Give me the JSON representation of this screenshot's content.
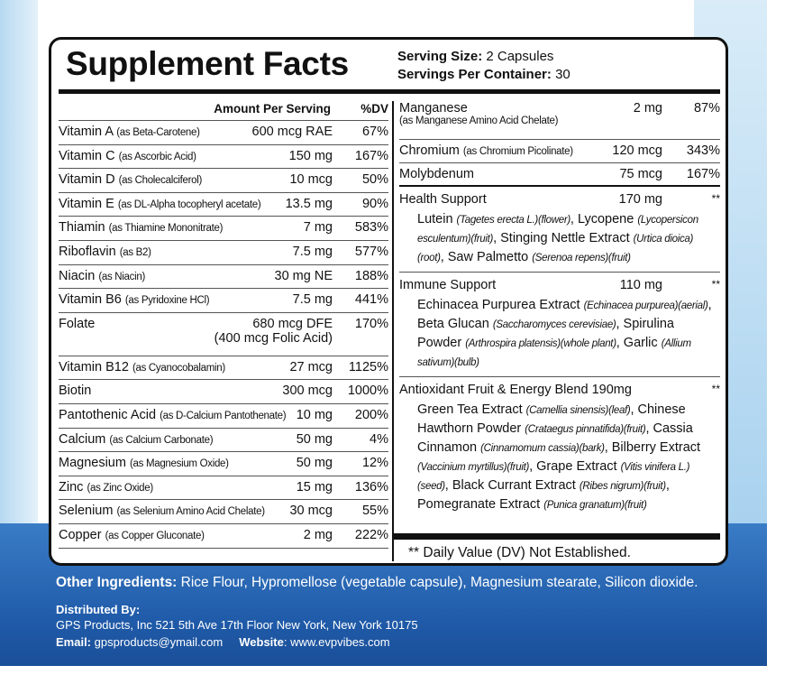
{
  "header": {
    "title": "Supplement Facts",
    "serving_size": {
      "label": "Serving Size:",
      "value": "2 Capsules"
    },
    "servings": {
      "label": "Servings Per Container:",
      "value": "30"
    }
  },
  "left_table": {
    "columns": [
      "Amount Per Serving",
      "%DV"
    ],
    "rows": [
      {
        "name": "Vitamin A",
        "form": "(as Beta-Carotene)",
        "amount": "600 mcg RAE",
        "dv": "67%"
      },
      {
        "name": "Vitamin C",
        "form": "(as Ascorbic Acid)",
        "amount": "150 mg",
        "dv": "167%"
      },
      {
        "name": "Vitamin D",
        "form": "(as Cholecalciferol)",
        "amount": "10 mcg",
        "dv": "50%"
      },
      {
        "name": "Vitamin E",
        "form": "(as DL-Alpha tocopheryl acetate)",
        "amount": "13.5 mg",
        "dv": "90%"
      },
      {
        "name": "Thiamin",
        "form": "(as Thiamine Mononitrate)",
        "amount": "7 mg",
        "dv": "583%"
      },
      {
        "name": "Riboflavin",
        "form": "(as B2)",
        "amount": "7.5 mg",
        "dv": "577%"
      },
      {
        "name": "Niacin",
        "form": "(as Niacin)",
        "amount": "30 mg NE",
        "dv": "188%"
      },
      {
        "name": "Vitamin B6",
        "form": "(as Pyridoxine HCl)",
        "amount": "7.5 mg",
        "dv": "441%"
      },
      {
        "name": "Folate",
        "amount": "680 mcg DFE",
        "amount_note": "(400 mcg Folic Acid)",
        "dv": "170%"
      },
      {
        "name": "Vitamin B12",
        "form": "(as Cyanocobalamin)",
        "amount": "27 mcg",
        "dv": "1125%"
      },
      {
        "name": "Biotin",
        "amount": "300 mcg",
        "dv": "1000%"
      },
      {
        "name": "Pantothenic Acid",
        "form": "(as D-Calcium Pantothenate)",
        "amount": "10 mg",
        "dv": "200%"
      },
      {
        "name": "Calcium",
        "form": "(as Calcium Carbonate)",
        "amount": "50 mg",
        "dv": "4%"
      },
      {
        "name": "Magnesium",
        "form": "(as Magnesium Oxide)",
        "amount": "50 mg",
        "dv": "12%"
      },
      {
        "name": "Zinc",
        "form": "(as Zinc Oxide)",
        "amount": "15 mg",
        "dv": "136%"
      },
      {
        "name": "Selenium",
        "form": "(as Selenium Amino Acid Chelate)",
        "amount": "30 mcg",
        "dv": "55%"
      },
      {
        "name": "Copper",
        "form": "(as Copper Gluconate)",
        "amount": "2 mg",
        "dv": "222%"
      }
    ]
  },
  "right_table": {
    "rows": [
      {
        "name": "Manganese",
        "form": "(as Manganese Amino Acid Chelate)",
        "amount": "2 mg",
        "dv": "87%"
      },
      {
        "name": "Chromium",
        "form": "(as Chromium Picolinate)",
        "amount": "120 mcg",
        "dv": "343%"
      },
      {
        "name": "Molybdenum",
        "amount": "75 mcg",
        "dv": "167%"
      }
    ],
    "blends": [
      {
        "name": "Health Support",
        "amount": "170 mg",
        "dv": "**",
        "parts": [
          {
            "text": "Lutein "
          },
          {
            "text": "(Tagetes erecta L.)(flower)",
            "italic": true
          },
          {
            "text": ", Lycopene "
          },
          {
            "text": "(Lycopersicon esculentum)(fruit)",
            "italic": true
          },
          {
            "text": ", Stinging Nettle Extract "
          },
          {
            "text": "(Urtica dioica)(root)",
            "italic": true
          },
          {
            "text": ", Saw Palmetto "
          },
          {
            "text": "(Serenoa repens)(fruit)",
            "italic": true
          }
        ]
      },
      {
        "name": "Immune Support",
        "amount": "110 mg",
        "dv": "**",
        "parts": [
          {
            "text": "Echinacea Purpurea Extract "
          },
          {
            "text": "(Echinacea purpurea)(aerial)",
            "italic": true
          },
          {
            "text": ", Beta Glucan "
          },
          {
            "text": "(Saccharomyces cerevisiae)",
            "italic": true
          },
          {
            "text": ", Spirulina Powder "
          },
          {
            "text": "(Arthrospira platensis)(whole plant)",
            "italic": true
          },
          {
            "text": ", Garlic "
          },
          {
            "text": "(Allium sativum)(bulb)",
            "italic": true
          }
        ]
      },
      {
        "name": "Antioxidant Fruit & Energy Blend",
        "amount": "190mg",
        "dv": "**",
        "parts": [
          {
            "text": "Green Tea Extract "
          },
          {
            "text": "(Camellia sinensis)(leaf)",
            "italic": true
          },
          {
            "text": ", Chinese Hawthorn Powder "
          },
          {
            "text": "(Crataegus pinnatifida)(fruit)",
            "italic": true
          },
          {
            "text": ", Cassia Cinnamon "
          },
          {
            "text": "(Cinnamomum cassia)(bark)",
            "italic": true
          },
          {
            "text": ", Bilberry Extract "
          },
          {
            "text": "(Vaccinium myrtillus)(fruit)",
            "italic": true
          },
          {
            "text": ", Grape Extract "
          },
          {
            "text": "(Vitis vinifera L.)(seed)",
            "italic": true
          },
          {
            "text": ", Black Currant Extract "
          },
          {
            "text": "(Ribes nigrum)(fruit)",
            "italic": true
          },
          {
            "text": ", Pomegranate Extract "
          },
          {
            "text": "(Punica granatum)(fruit)",
            "italic": true
          }
        ]
      }
    ],
    "footnote": "** Daily Value (DV) Not Established."
  },
  "other_ingredients": {
    "label": "Other Ingredients:",
    "text": "Rice Flour, Hypromellose (vegetable capsule), Magnesium stearate, Silicon dioxide."
  },
  "distributor": {
    "label": "Distributed By:",
    "address": "GPS Products, Inc 521 5th Ave 17th Floor New York, New York 10175",
    "email_label": "Email:",
    "email": "gpsproducts@ymail.com",
    "website_label": "Website",
    "website": ": www.evpvibes.com"
  }
}
